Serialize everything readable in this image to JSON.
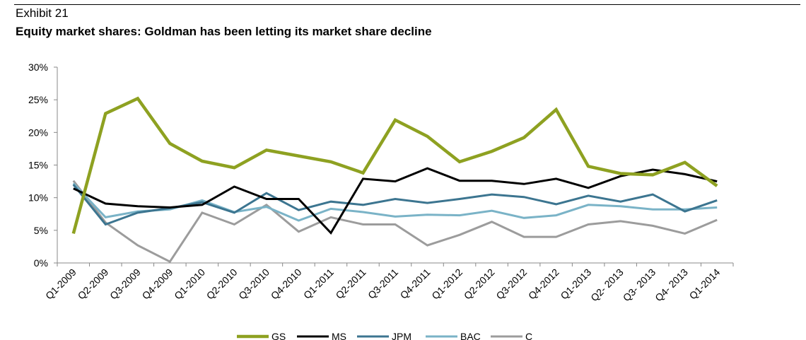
{
  "header": {
    "exhibit": "Exhibit 21",
    "title": "Equity market shares: Goldman has been letting its market share decline"
  },
  "chart_data": {
    "type": "line",
    "title": "Equity market shares: Goldman has been letting its market share decline",
    "xlabel": "",
    "ylabel": "",
    "ylim": [
      0,
      30
    ],
    "yticks": [
      "0%",
      "5%",
      "10%",
      "15%",
      "20%",
      "25%",
      "30%"
    ],
    "grid": false,
    "legend_position": "bottom",
    "categories": [
      "Q1-2009",
      "Q2-2009",
      "Q3-2009",
      "Q4-2009",
      "Q1-2010",
      "Q2-2010",
      "Q3-2010",
      "Q4-2010",
      "Q1-2011",
      "Q2-2011",
      "Q3-2011",
      "Q4-2011",
      "Q1-2012",
      "Q2-2012",
      "Q3-2012",
      "Q4-2012",
      "Q1-2013",
      "Q2- 2013",
      "Q3- 2013",
      "Q4- 2013",
      "Q1-2014"
    ],
    "series": [
      {
        "name": "GS",
        "color": "#8ea121",
        "width": 4.5,
        "values": [
          4.5,
          22.9,
          25.2,
          18.3,
          15.6,
          14.6,
          17.3,
          16.4,
          15.5,
          13.8,
          21.9,
          19.4,
          15.5,
          17.1,
          19.2,
          23.5,
          14.8,
          13.7,
          13.5,
          15.4,
          11.8
        ]
      },
      {
        "name": "MS",
        "color": "#000000",
        "width": 3,
        "values": [
          11.4,
          9.1,
          8.7,
          8.5,
          8.9,
          11.7,
          9.8,
          9.8,
          4.6,
          12.9,
          12.5,
          14.5,
          12.6,
          12.6,
          12.1,
          12.9,
          11.5,
          13.3,
          14.3,
          13.6,
          12.5
        ]
      },
      {
        "name": "JPM",
        "color": "#3c7590",
        "width": 3,
        "values": [
          12.0,
          5.9,
          7.7,
          8.4,
          9.3,
          7.7,
          10.7,
          8.1,
          9.4,
          8.9,
          9.8,
          9.2,
          9.8,
          10.5,
          10.1,
          9.0,
          10.3,
          9.4,
          10.5,
          7.9,
          9.6
        ]
      },
      {
        "name": "BAC",
        "color": "#7ab3c7",
        "width": 3,
        "values": [
          12.2,
          7.0,
          7.9,
          8.2,
          9.6,
          7.8,
          8.6,
          6.5,
          8.3,
          7.8,
          7.1,
          7.4,
          7.3,
          8.0,
          6.9,
          7.3,
          8.9,
          8.7,
          8.2,
          8.2,
          8.5
        ]
      },
      {
        "name": "C",
        "color": "#9c9c9c",
        "width": 3,
        "values": [
          12.6,
          6.2,
          2.7,
          0.2,
          7.7,
          5.9,
          8.9,
          4.8,
          7.0,
          5.9,
          5.9,
          2.7,
          4.3,
          6.3,
          4.0,
          4.0,
          5.9,
          6.4,
          5.7,
          4.5,
          6.6
        ]
      }
    ]
  }
}
